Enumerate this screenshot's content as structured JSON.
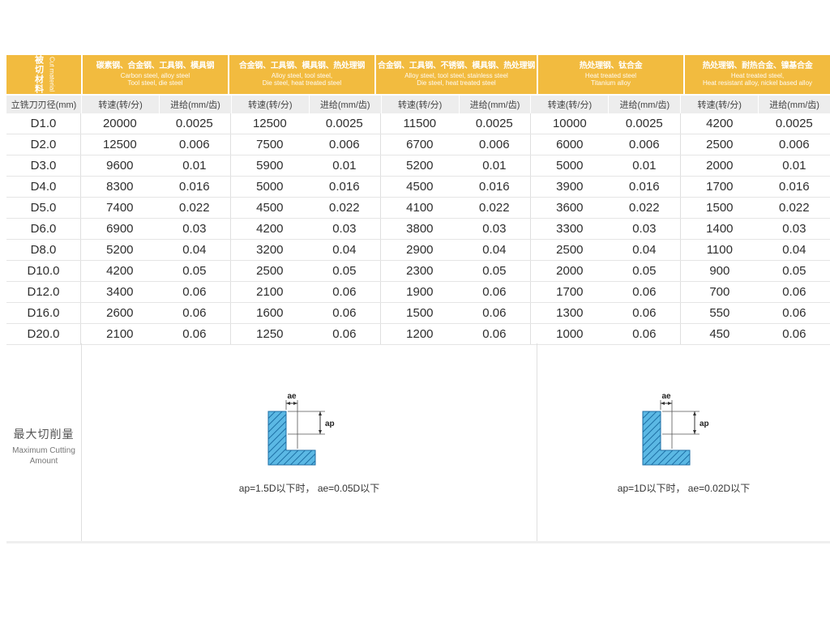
{
  "colors": {
    "header_gold": "#F2BB3F",
    "subheader_bg": "#EDEDED",
    "diagram_fill_blue": "#5BB8E4",
    "diagram_hatch_blue": "#1C6EA4"
  },
  "header": {
    "cut_material": {
      "zh": "被切材料",
      "en": "Cut material"
    },
    "diameter_label": "立铣刀刃径(mm)",
    "speed_label": "转速(转/分)",
    "feed_label": "进给(mm/齿)",
    "groups": [
      {
        "zh": "碳素钢、合金钢、工具钢、模具钢",
        "en": [
          "Carbon steel,  alloy steel",
          "Tool steel,  die steel"
        ]
      },
      {
        "zh": "合金钢、工具钢、模具钢、热处理钢",
        "en": [
          "Alloy steel, tool steel,",
          "Die steel, heat treated steel"
        ]
      },
      {
        "zh": "合金钢、工具钢、不锈钢、模具钢、热处理钢",
        "en": [
          "Alloy steel, tool steel, stainless steel",
          "Die steel, heat treated steel"
        ]
      },
      {
        "zh": "热处理钢、钛合金",
        "en": [
          "Heat treated steel",
          "Titanium alloy"
        ]
      },
      {
        "zh": "热处理钢、耐热合金、镍基合金",
        "en": [
          "Heat treated steel,",
          "Heat resistant alloy,  nickel based alloy"
        ]
      }
    ]
  },
  "rows": [
    {
      "d": "D1.0",
      "values": [
        [
          "20000",
          "0.0025"
        ],
        [
          "12500",
          "0.0025"
        ],
        [
          "11500",
          "0.0025"
        ],
        [
          "10000",
          "0.0025"
        ],
        [
          "4200",
          "0.0025"
        ]
      ]
    },
    {
      "d": "D2.0",
      "values": [
        [
          "12500",
          "0.006"
        ],
        [
          "7500",
          "0.006"
        ],
        [
          "6700",
          "0.006"
        ],
        [
          "6000",
          "0.006"
        ],
        [
          "2500",
          "0.006"
        ]
      ]
    },
    {
      "d": "D3.0",
      "values": [
        [
          "9600",
          "0.01"
        ],
        [
          "5900",
          "0.01"
        ],
        [
          "5200",
          "0.01"
        ],
        [
          "5000",
          "0.01"
        ],
        [
          "2000",
          "0.01"
        ]
      ]
    },
    {
      "d": "D4.0",
      "values": [
        [
          "8300",
          "0.016"
        ],
        [
          "5000",
          "0.016"
        ],
        [
          "4500",
          "0.016"
        ],
        [
          "3900",
          "0.016"
        ],
        [
          "1700",
          "0.016"
        ]
      ]
    },
    {
      "d": "D5.0",
      "values": [
        [
          "7400",
          "0.022"
        ],
        [
          "4500",
          "0.022"
        ],
        [
          "4100",
          "0.022"
        ],
        [
          "3600",
          "0.022"
        ],
        [
          "1500",
          "0.022"
        ]
      ]
    },
    {
      "d": "D6.0",
      "values": [
        [
          "6900",
          "0.03"
        ],
        [
          "4200",
          "0.03"
        ],
        [
          "3800",
          "0.03"
        ],
        [
          "3300",
          "0.03"
        ],
        [
          "1400",
          "0.03"
        ]
      ]
    },
    {
      "d": "D8.0",
      "values": [
        [
          "5200",
          "0.04"
        ],
        [
          "3200",
          "0.04"
        ],
        [
          "2900",
          "0.04"
        ],
        [
          "2500",
          "0.04"
        ],
        [
          "1100",
          "0.04"
        ]
      ]
    },
    {
      "d": "D10.0",
      "values": [
        [
          "4200",
          "0.05"
        ],
        [
          "2500",
          "0.05"
        ],
        [
          "2300",
          "0.05"
        ],
        [
          "2000",
          "0.05"
        ],
        [
          "900",
          "0.05"
        ]
      ]
    },
    {
      "d": "D12.0",
      "values": [
        [
          "3400",
          "0.06"
        ],
        [
          "2100",
          "0.06"
        ],
        [
          "1900",
          "0.06"
        ],
        [
          "1700",
          "0.06"
        ],
        [
          "700",
          "0.06"
        ]
      ]
    },
    {
      "d": "D16.0",
      "values": [
        [
          "2600",
          "0.06"
        ],
        [
          "1600",
          "0.06"
        ],
        [
          "1500",
          "0.06"
        ],
        [
          "1300",
          "0.06"
        ],
        [
          "550",
          "0.06"
        ]
      ]
    },
    {
      "d": "D20.0",
      "values": [
        [
          "2100",
          "0.06"
        ],
        [
          "1250",
          "0.06"
        ],
        [
          "1200",
          "0.06"
        ],
        [
          "1000",
          "0.06"
        ],
        [
          "450",
          "0.06"
        ]
      ]
    }
  ],
  "cutting_amount": {
    "label_zh": "最大切削量",
    "label_en": [
      "Maximum Cutting",
      "Amount"
    ],
    "diagrams": [
      {
        "ae_label": "ae",
        "ap_label": "ap",
        "caption": "ap=1.5D以下时， ae=0.05D以下"
      },
      {
        "ae_label": "ae",
        "ap_label": "ap",
        "caption": "ap=1D以下时， ae=0.02D以下"
      }
    ]
  }
}
